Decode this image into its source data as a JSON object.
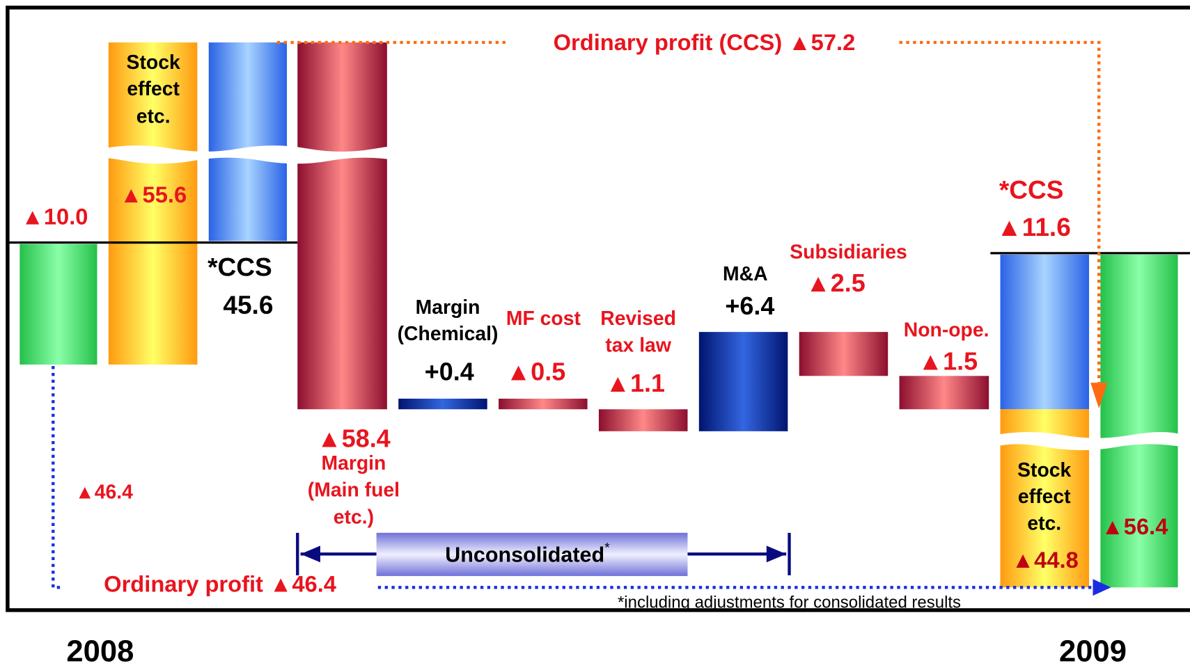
{
  "title": "Ordinary profit (CCS) ▲57.2",
  "bottom_label": "Ordinary profit ▲46.4",
  "left_diff": "▲46.4",
  "years": [
    "2008",
    "2009"
  ],
  "bars": [
    {
      "value": "▲10.0"
    },
    {
      "label": [
        "Stock",
        "effect",
        "etc."
      ],
      "value": "▲55.6"
    },
    {
      "label": [
        "*CCS"
      ],
      "value": "45.6"
    },
    {
      "label": [
        "Margin",
        "(Main fuel",
        "etc.)"
      ],
      "value": "▲58.4"
    },
    {
      "label": [
        "Margin",
        "(Chemical)"
      ],
      "value": "+0.4"
    },
    {
      "label": [
        "MF cost"
      ],
      "value": "▲0.5"
    },
    {
      "label": [
        "Revised",
        "tax law"
      ],
      "value": "▲1.1"
    },
    {
      "label": [
        "M&A"
      ],
      "value": "+6.4"
    },
    {
      "label": [
        "Subsidiaries"
      ],
      "value": "▲2.5"
    },
    {
      "label": [
        "Non-ope."
      ],
      "value": "▲1.5"
    },
    {
      "label": [
        "*CCS"
      ],
      "value": "▲11.6"
    },
    {
      "label": [
        "Stock",
        "effect",
        "etc."
      ],
      "value": "▲44.8"
    },
    {
      "value": "▲56.4"
    }
  ],
  "unconsolidated": "Unconsolidated",
  "asterisk": "*",
  "footnote": "*including adjustments for consolidated results"
}
